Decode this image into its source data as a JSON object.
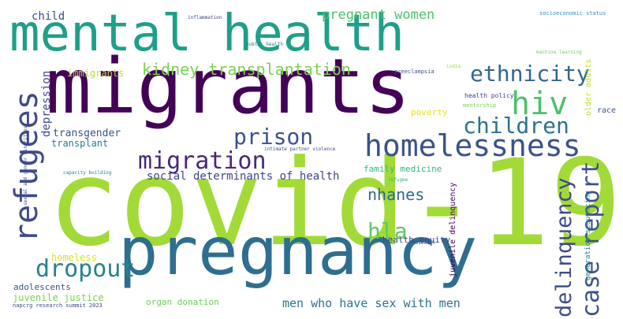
{
  "words": [
    {
      "text": "covid-19",
      "color": "#a2da37"
    },
    {
      "text": "migrants",
      "color": "#440256"
    },
    {
      "text": "mental health",
      "color": "#1f9f88"
    },
    {
      "text": "pregnancy",
      "color": "#2e6e8e"
    },
    {
      "text": "homelessness",
      "color": "#3b528b"
    },
    {
      "text": "refugees",
      "color": "#3e4a89"
    },
    {
      "text": "migration",
      "color": "#482878"
    },
    {
      "text": "children",
      "color": "#2c728e"
    },
    {
      "text": "prison",
      "color": "#3b528b"
    },
    {
      "text": "hiv",
      "color": "#4ac16d"
    },
    {
      "text": "ethnicity",
      "color": "#31688e"
    },
    {
      "text": "kidney transplantation",
      "color": "#7ad151"
    },
    {
      "text": "dropout",
      "color": "#26828e"
    },
    {
      "text": "case report",
      "color": "#3b528b"
    },
    {
      "text": "delinquency",
      "color": "#3e4989"
    },
    {
      "text": "hla",
      "color": "#5ec962"
    },
    {
      "text": "nhanes",
      "color": "#31688e"
    },
    {
      "text": "pregnant women",
      "color": "#4ac16d"
    },
    {
      "text": "depression",
      "color": "#404688"
    },
    {
      "text": "child",
      "color": "#3e4a89"
    },
    {
      "text": "immigrants",
      "color": "#b5de2b"
    },
    {
      "text": "transgender",
      "color": "#3b528b"
    },
    {
      "text": "transplant",
      "color": "#2a788e"
    },
    {
      "text": "social determinants of health",
      "color": "#414487"
    },
    {
      "text": "men who have sex with men",
      "color": "#2c728e"
    },
    {
      "text": "juvenile justice",
      "color": "#7ad151"
    },
    {
      "text": "organ donation",
      "color": "#6ccd5a"
    },
    {
      "text": "adolescents",
      "color": "#3b528b"
    },
    {
      "text": "homeless",
      "color": "#d8e219"
    },
    {
      "text": "family medicine",
      "color": "#35b779"
    },
    {
      "text": "poverty",
      "color": "#e5e419"
    },
    {
      "text": "race",
      "color": "#3b528b"
    },
    {
      "text": "older adults",
      "color": "#c2df23"
    },
    {
      "text": "generation sequencing",
      "color": "#26828e"
    },
    {
      "text": "health equity",
      "color": "#3e4a89"
    },
    {
      "text": "juvenile delinquency",
      "color": "#440154"
    },
    {
      "text": "health policy",
      "color": "#443983"
    },
    {
      "text": "mentorship",
      "color": "#7ad151"
    },
    {
      "text": "preeclampsia",
      "color": "#3b528b"
    },
    {
      "text": "india",
      "color": "#a0da39"
    },
    {
      "text": "machine learning",
      "color": "#6ccd5a"
    },
    {
      "text": "public health",
      "color": "#2a788e"
    },
    {
      "text": "inflammation",
      "color": "#3e4989"
    },
    {
      "text": "socioeconomic status",
      "color": "#3b8bc2"
    },
    {
      "text": "intimate partner violence",
      "color": "#3e4989"
    },
    {
      "text": "sexual and gender minorities",
      "color": "#3e4989"
    },
    {
      "text": "capacity building",
      "color": "#26828e"
    },
    {
      "text": "refugee",
      "color": "#35b779"
    },
    {
      "text": "research",
      "color": "#3e4a89"
    },
    {
      "text": "napcrg research summit 2023",
      "color": "#3e4a89"
    }
  ]
}
